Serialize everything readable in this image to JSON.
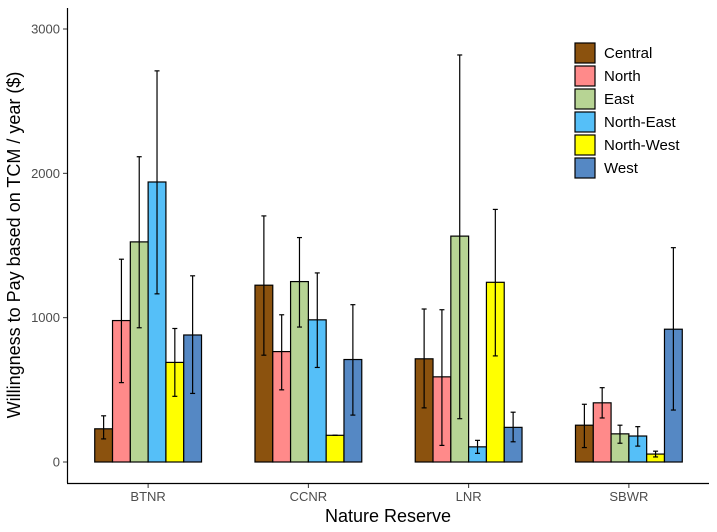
{
  "chart_data": {
    "type": "bar",
    "title": "",
    "xlabel": "Nature Reserve",
    "ylabel": "Willingness to Pay based on TCM / year ($)",
    "ylim": [
      0,
      3150
    ],
    "yticks": [
      0,
      1000,
      2000,
      3000
    ],
    "ytick_labels": [
      "0",
      "1000",
      "2000",
      "3000"
    ],
    "categories": [
      "BTNR",
      "CCNR",
      "LNR",
      "SBWR"
    ],
    "grid": false,
    "legend_position": "top-right",
    "series": [
      {
        "name": "Central",
        "color": "#8B520E",
        "values": [
          230,
          1225,
          715,
          255
        ],
        "err_low": [
          160,
          740,
          375,
          100
        ],
        "err_high": [
          320,
          1705,
          1060,
          400
        ]
      },
      {
        "name": "North",
        "color": "#FF8A8A",
        "values": [
          980,
          765,
          590,
          410
        ],
        "err_low": [
          550,
          500,
          115,
          305
        ],
        "err_high": [
          1405,
          1020,
          1055,
          515
        ]
      },
      {
        "name": "East",
        "color": "#B7D494",
        "values": [
          1525,
          1250,
          1565,
          195
        ],
        "err_low": [
          930,
          935,
          300,
          130
        ],
        "err_high": [
          2115,
          1555,
          2820,
          255
        ]
      },
      {
        "name": "North-East",
        "color": "#55BFF8",
        "values": [
          1940,
          985,
          105,
          180
        ],
        "err_low": [
          1165,
          655,
          60,
          110
        ],
        "err_high": [
          2710,
          1310,
          150,
          245
        ]
      },
      {
        "name": "North-West",
        "color": "#FFFF00",
        "values": [
          690,
          185,
          1245,
          55
        ],
        "err_low": [
          455,
          185,
          735,
          35
        ],
        "err_high": [
          925,
          185,
          1750,
          75
        ]
      },
      {
        "name": "West",
        "color": "#5588C4",
        "values": [
          880,
          710,
          240,
          920
        ],
        "err_low": [
          475,
          325,
          140,
          360
        ],
        "err_high": [
          1290,
          1090,
          345,
          1485
        ]
      }
    ]
  }
}
